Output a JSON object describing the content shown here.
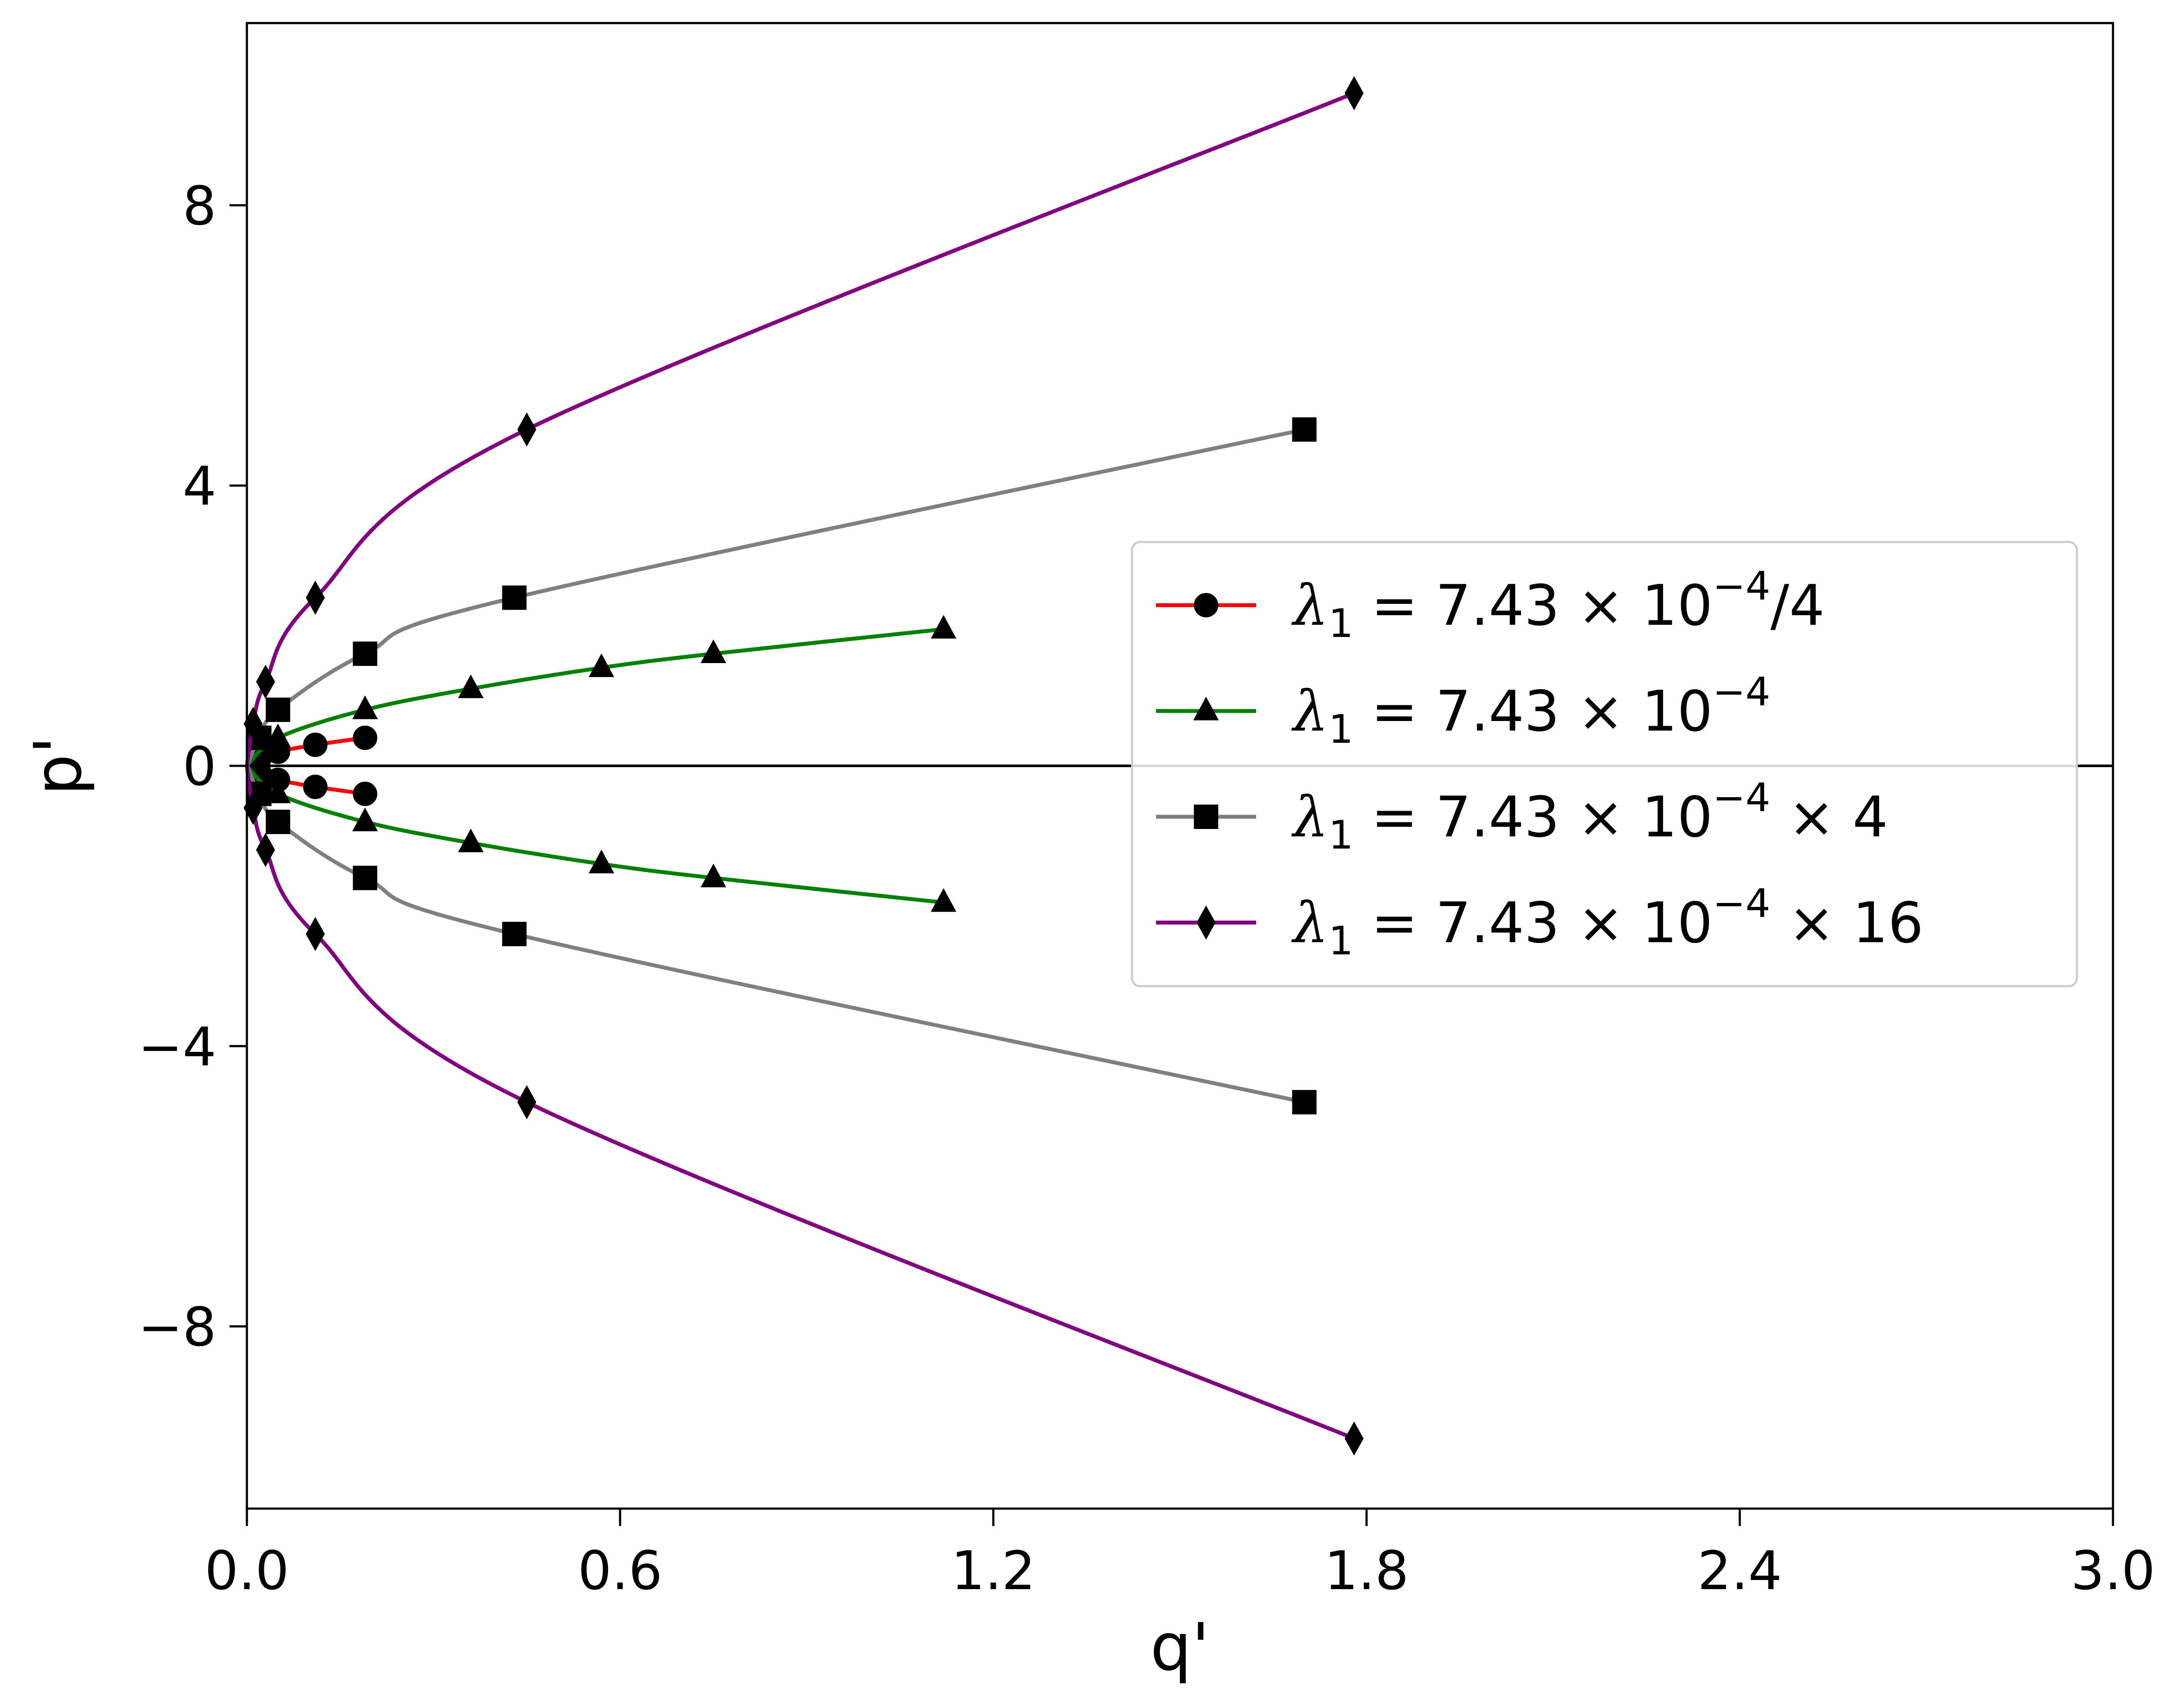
{
  "chart_data": {
    "type": "line",
    "xlabel": "q'",
    "ylabel": "p'",
    "xlim": [
      0.0,
      3.0
    ],
    "ylim": [
      -10.6,
      10.6
    ],
    "xticks": [
      "0.0",
      "0.6",
      "1.2",
      "1.8",
      "2.4",
      "3.0"
    ],
    "xtick_values": [
      0.0,
      0.6,
      1.2,
      1.8,
      2.4,
      3.0
    ],
    "yticks": [
      "−8",
      "−4",
      "0",
      "4",
      "8"
    ],
    "ytick_values": [
      -8,
      -4,
      0,
      4,
      8
    ],
    "grid": false,
    "reference_line": {
      "y": 0,
      "color": "#000000"
    },
    "legend": {
      "placement": "center-right",
      "entries": [
        {
          "lambda": "λ",
          "sub": "1",
          "eq": " = 7.43 × 10",
          "sup": "−4",
          "tail": "/4"
        },
        {
          "lambda": "λ",
          "sub": "1",
          "eq": " = 7.43 × 10",
          "sup": "−4",
          "tail": ""
        },
        {
          "lambda": "λ",
          "sub": "1",
          "eq": " = 7.43 × 10",
          "sup": "−4",
          "tail": " × 4"
        },
        {
          "lambda": "λ",
          "sub": "1",
          "eq": " = 7.43 × 10",
          "sup": "−4",
          "tail": " × 16"
        }
      ]
    },
    "series": [
      {
        "color": "#ff0000",
        "marker": "circle",
        "marker_color": "#000000",
        "points": [
          [
            0.0,
            0.0
          ],
          [
            0.02,
            0.1
          ],
          [
            0.05,
            0.2
          ],
          [
            0.11,
            0.3
          ],
          [
            0.19,
            0.4
          ]
        ]
      },
      {
        "color": "#008000",
        "marker": "triangle",
        "marker_color": "#000000",
        "points": [
          [
            0.0,
            0.0
          ],
          [
            0.05,
            0.4
          ],
          [
            0.19,
            0.8
          ],
          [
            0.36,
            1.1
          ],
          [
            0.57,
            1.4
          ],
          [
            0.75,
            1.6
          ],
          [
            1.12,
            1.95
          ]
        ]
      },
      {
        "color": "#808080",
        "marker": "square",
        "marker_color": "#000000",
        "points": [
          [
            0.0,
            0.0
          ],
          [
            0.02,
            0.4
          ],
          [
            0.05,
            0.8
          ],
          [
            0.19,
            1.6
          ],
          [
            0.43,
            2.4
          ],
          [
            1.7,
            4.8
          ]
        ]
      },
      {
        "color": "#800080",
        "marker": "diamond",
        "marker_color": "#000000",
        "points": [
          [
            0.0,
            0.0
          ],
          [
            0.01,
            0.6
          ],
          [
            0.03,
            1.2
          ],
          [
            0.11,
            2.4
          ],
          [
            0.45,
            4.8
          ],
          [
            1.78,
            9.6
          ]
        ]
      }
    ]
  }
}
